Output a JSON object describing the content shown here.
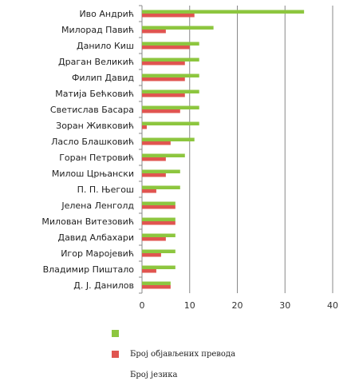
{
  "chart_data": {
    "type": "bar",
    "orientation": "horizontal",
    "categories": [
      "Иво Андрић",
      "Милорад Павић",
      "Данило Киш",
      "Драган Великић",
      "Филип Давид",
      "Матија Бећковић",
      "Светислав Басара",
      "Зоран Живковић",
      "Ласло Блашковић",
      "Горан Петровић",
      "Милош Црњански",
      "П. П. Његош",
      "Јелена Ленголд",
      "Милован Витезовић",
      "Давид Албахари",
      "Игор Маројевић",
      "Владимир Пиштало",
      "Д. Ј. Данилов"
    ],
    "series": [
      {
        "values": [
          34,
          15,
          12,
          12,
          12,
          12,
          12,
          12,
          11,
          9,
          8,
          8,
          7,
          7,
          7,
          7,
          7,
          6
        ],
        "color": "#8dc63f"
      },
      {
        "values": [
          11,
          5,
          10,
          9,
          9,
          9,
          8,
          1,
          6,
          5,
          5,
          3,
          7,
          7,
          5,
          4,
          3,
          6
        ],
        "color": "#e05550"
      }
    ],
    "xlim": [
      0,
      40
    ],
    "xticks": [
      0,
      10,
      20,
      30,
      40
    ],
    "grid": true,
    "legend_position": "bottom"
  },
  "legend": {
    "item1": "",
    "item2": "Број објављених превода",
    "item3": "Број језика"
  }
}
